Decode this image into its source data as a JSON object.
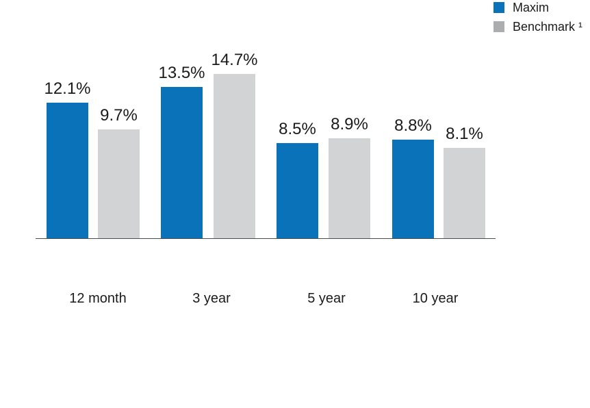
{
  "page": {
    "background": "#ffffff"
  },
  "legend": {
    "items": [
      {
        "key": "maxim",
        "label": "Maxim",
        "color": "#0972b8"
      },
      {
        "key": "benchmark",
        "label": "Benchmark ¹",
        "color": "#acadaf"
      }
    ]
  },
  "chart_data": {
    "type": "bar",
    "title": "",
    "categories": [
      "12 month",
      "3 year",
      "5 year",
      "10 year"
    ],
    "series": [
      {
        "name": "Maxim",
        "key": "maxim",
        "color": "#0972b8",
        "values": [
          12.1,
          13.5,
          8.5,
          8.8
        ],
        "labels": [
          "12.1%",
          "13.5%",
          "8.5%",
          "8.8%"
        ]
      },
      {
        "name": "Benchmark ¹",
        "key": "benchmark",
        "color": "#d2d3d5",
        "values": [
          9.7,
          14.7,
          8.9,
          8.1
        ],
        "labels": [
          "9.7%",
          "14.7%",
          "8.9%",
          "8.1%"
        ]
      }
    ],
    "value_suffix": "%",
    "ylim": [
      0,
      15
    ],
    "grid": false,
    "legend_position": "top-right",
    "axis_line_color": "#4a4b4d",
    "value_label_color": "#1a1a1a"
  }
}
